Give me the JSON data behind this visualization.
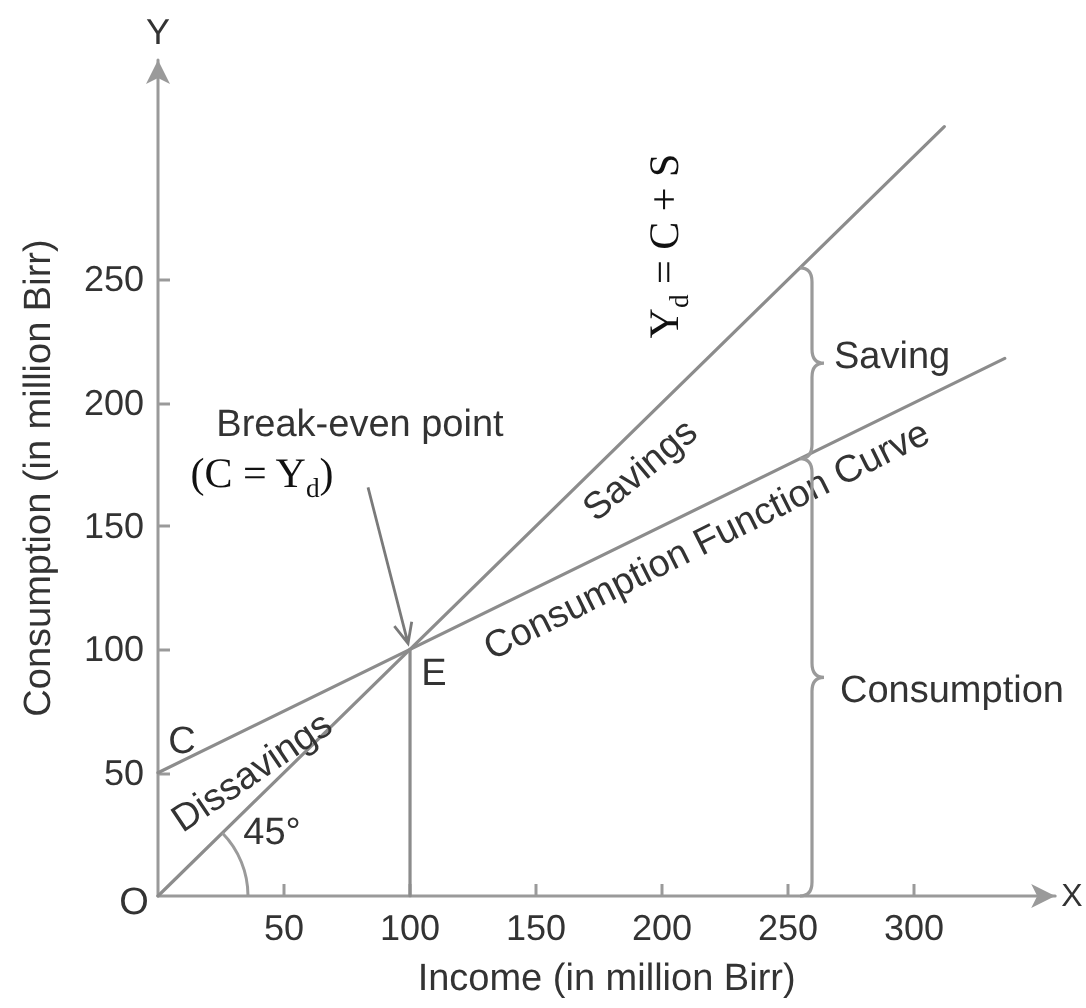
{
  "chart_data": {
    "type": "line",
    "xlabel": "Income (in million Birr)",
    "ylabel": "Consumption (in million Birr)",
    "xlim": [
      0,
      356
    ],
    "ylim": [
      0,
      339
    ],
    "xticks": [
      50,
      100,
      150,
      200,
      250,
      300
    ],
    "yticks": [
      50,
      100,
      150,
      200,
      250
    ],
    "series": [
      {
        "color": "#8c8c8c",
        "x": [
          0,
          312
        ],
        "values": [
          0,
          312
        ]
      },
      {
        "color": "#8c8c8c",
        "x": [
          0,
          336
        ],
        "values": [
          50,
          218
        ]
      },
      {
        "color": "#8c8c8c",
        "x": [
          100,
          100
        ],
        "values": [
          0,
          100
        ]
      }
    ],
    "marker": "none",
    "grid": false,
    "annotations": [
      "Y",
      "X",
      "O",
      "C",
      "E",
      "45°",
      "Dissavings",
      "Savings",
      {
        "text": "Consumption Function Curve",
        "x": 255,
        "y": 177.5
      },
      "Y$_{d}$ = C + S",
      "Saving",
      "Consumption",
      "Break-even point",
      {
        "text": "(C = Y$_{d}$)",
        "x": 100,
        "y": 100
      }
    ]
  }
}
